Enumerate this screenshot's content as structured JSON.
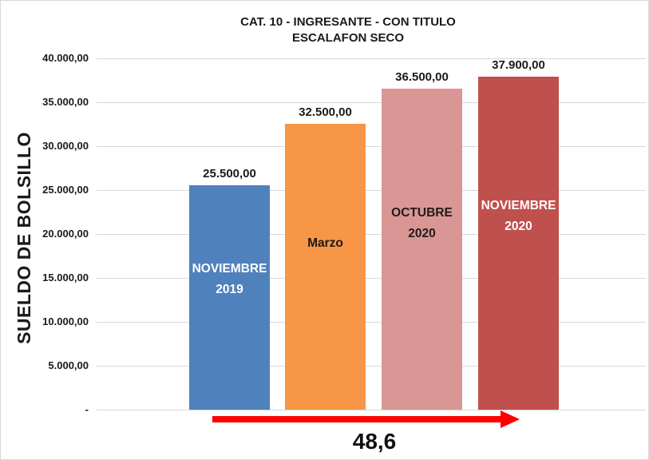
{
  "chart_data": {
    "type": "bar",
    "title_line1": "CAT. 10 - INGRESANTE - CON TITULO",
    "title_line2": "ESCALAFON SECO",
    "ylabel": "SUELDO DE BOLSILLO",
    "xlabel": "",
    "ylim": [
      0,
      40000
    ],
    "ytick_interval": 5000,
    "yticks": [
      "40.000,00",
      "35.000,00",
      "30.000,00",
      "25.000,00",
      "20.000,00",
      "15.000,00",
      "10.000,00",
      "5.000,00",
      "-"
    ],
    "grid": true,
    "legend_position": "none",
    "categories": [
      "NOVIEMBRE 2019",
      "Marzo",
      "OCTUBRE 2020",
      "NOVIEMBRE 2020"
    ],
    "values": [
      25500,
      32500,
      36500,
      37900
    ],
    "bars": [
      {
        "category": "NOVIEMBRE 2019",
        "label_lines": [
          "NOVIEMBRE",
          "2019"
        ],
        "value": 25500,
        "value_label": "25.500,00",
        "color": "#4f81bd",
        "label_color": "#ffffff"
      },
      {
        "category": "Marzo",
        "label_lines": [
          "Marzo"
        ],
        "value": 32500,
        "value_label": "32.500,00",
        "color": "#f79646",
        "label_color": "#1a1a1a"
      },
      {
        "category": "OCTUBRE 2020",
        "label_lines": [
          "OCTUBRE",
          "2020"
        ],
        "value": 36500,
        "value_label": "36.500,00",
        "color": "#d99694",
        "label_color": "#221a1a"
      },
      {
        "category": "NOVIEMBRE 2020",
        "label_lines": [
          "NOVIEMBRE",
          "2020"
        ],
        "value": 37900,
        "value_label": "37.900,00",
        "color": "#c0504d",
        "label_color": "#ffffff"
      }
    ],
    "annotation": {
      "text": "48,6",
      "arrow_color": "#ff0000",
      "arrow_direction": "right"
    },
    "colors": {
      "gridline": "#d9d9d9",
      "text": "#1a1a1a",
      "background": "#ffffff"
    }
  }
}
